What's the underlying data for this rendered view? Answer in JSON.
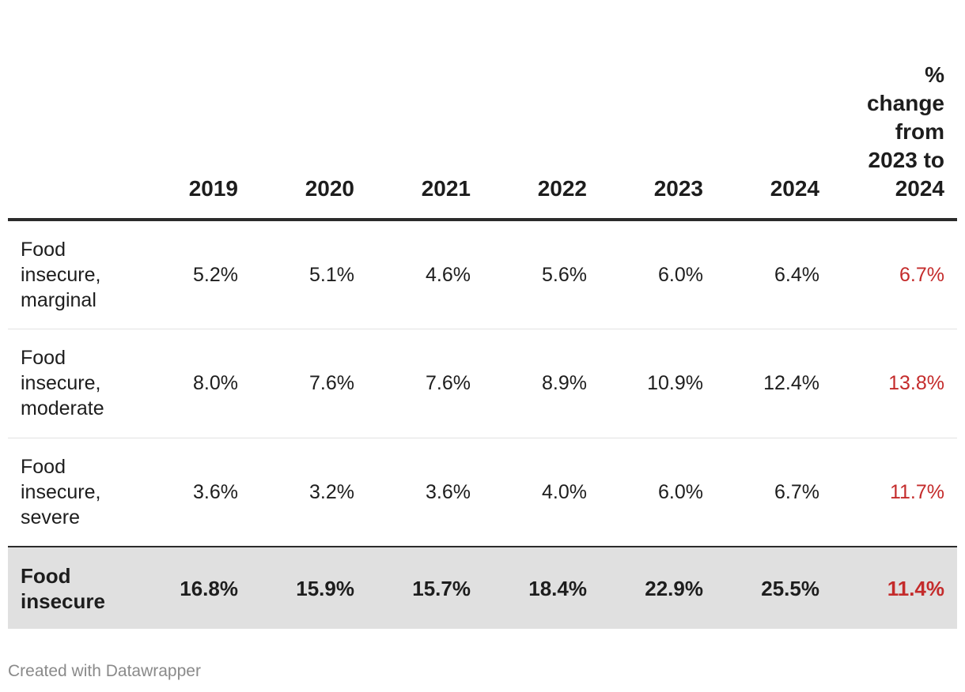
{
  "chart_data": {
    "type": "table",
    "columns": [
      "",
      "2019",
      "2020",
      "2021",
      "2022",
      "2023",
      "2024",
      "% change from 2023 to 2024"
    ],
    "rows": [
      {
        "label": "Food insecure, marginal",
        "values": [
          "5.2%",
          "5.1%",
          "4.6%",
          "5.6%",
          "6.0%",
          "6.4%"
        ],
        "change": "6.7%"
      },
      {
        "label": "Food insecure, moderate",
        "values": [
          "8.0%",
          "7.6%",
          "7.6%",
          "8.9%",
          "10.9%",
          "12.4%"
        ],
        "change": "13.8%"
      },
      {
        "label": "Food insecure, severe",
        "values": [
          "3.6%",
          "3.2%",
          "3.6%",
          "4.0%",
          "6.0%",
          "6.7%"
        ],
        "change": "11.7%"
      }
    ],
    "total": {
      "label": "Food insecure",
      "values": [
        "16.8%",
        "15.9%",
        "15.7%",
        "18.4%",
        "22.9%",
        "25.5%"
      ],
      "change": "11.4%"
    },
    "colors": {
      "change_text": "#c42b2b",
      "total_row_bg": "#e0e0e0"
    }
  },
  "footer": {
    "credit": "Created with Datawrapper"
  }
}
